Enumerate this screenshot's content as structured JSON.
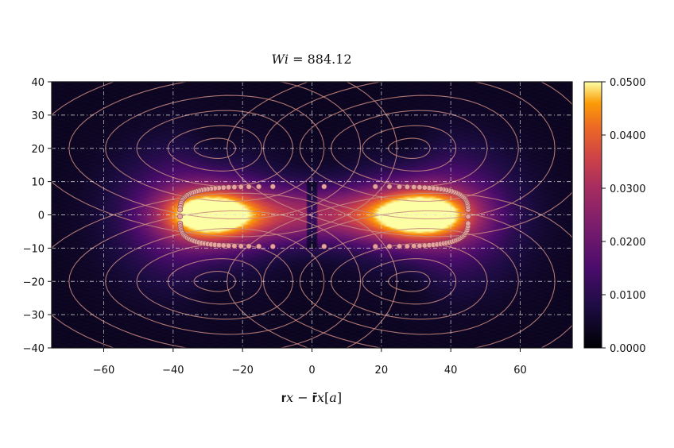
{
  "chart_data": {
    "type": "heatmap",
    "title": "𝑊𝑖 =  884.12",
    "xlabel": "𝐫𝑥 − 𝐫̄𝑥[𝑎]",
    "ylabel": "",
    "xlim": [
      -75,
      75
    ],
    "ylim": [
      -40,
      40
    ],
    "xticks": [
      -60,
      -40,
      -20,
      0,
      20,
      40,
      60
    ],
    "yticks": [
      -40,
      -30,
      -20,
      -10,
      0,
      10,
      20,
      30,
      40
    ],
    "grid": true,
    "colormap": "inferno",
    "colorbar": {
      "min": 0.0,
      "max": 0.05,
      "ticks": [
        "0.0000",
        "0.0100",
        "0.0200",
        "0.0300",
        "0.0400",
        "0.0500"
      ]
    },
    "intensity_blobs": [
      {
        "x": -30,
        "y": 0,
        "sx": 9,
        "sy": 5,
        "value": 0.036
      },
      {
        "x": 32,
        "y": 0,
        "sx": 10,
        "sy": 5,
        "value": 0.038
      },
      {
        "x": -14,
        "y": 0,
        "sx": 14,
        "sy": 6,
        "value": 0.022
      },
      {
        "x": 16,
        "y": 0,
        "sx": 14,
        "sy": 6,
        "value": 0.022
      },
      {
        "x": -35,
        "y": 5,
        "sx": 14,
        "sy": 12,
        "value": 0.01
      },
      {
        "x": 38,
        "y": 5,
        "sx": 14,
        "sy": 12,
        "value": 0.01
      },
      {
        "x": -35,
        "y": -5,
        "sx": 14,
        "sy": 12,
        "value": 0.01
      },
      {
        "x": 38,
        "y": -5,
        "sx": 14,
        "sy": 12,
        "value": 0.01
      }
    ],
    "vortex_centers": [
      {
        "x": -28,
        "y": 20
      },
      {
        "x": 28,
        "y": 20
      },
      {
        "x": -28,
        "y": -20
      },
      {
        "x": 28,
        "y": -20
      }
    ],
    "membrane_outline": {
      "x_range": [
        -38,
        45
      ],
      "y_range": [
        -9.5,
        8.5
      ],
      "bead_count": 120
    }
  },
  "colors": {
    "streamline": "#c98a80",
    "bead_fill": "#e6a3a0",
    "bead_stroke": "#8a4a52",
    "frame": "#111111"
  }
}
